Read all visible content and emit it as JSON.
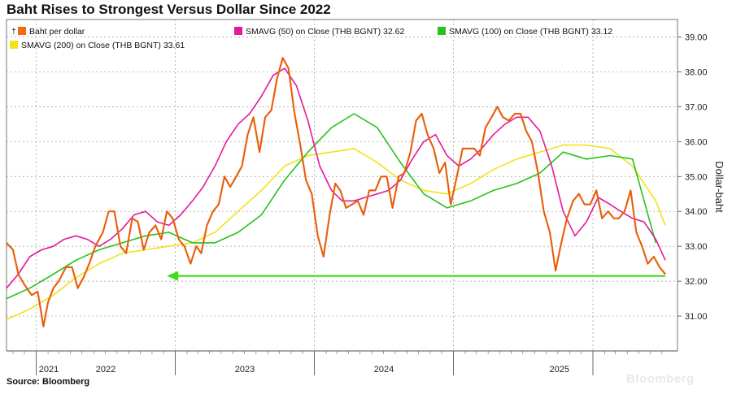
{
  "title": "Baht Rises to Strongest Versus Dollar Since 2022",
  "source": "Source: Bloomberg",
  "watermark": "Bloomberg",
  "chart_data": {
    "type": "line",
    "ylabel": "Dollar-baht",
    "ylim": [
      30.0,
      39.5
    ],
    "yticks": [
      "39.00",
      "38.00",
      "37.00",
      "36.00",
      "35.00",
      "34.00",
      "33.00",
      "32.00",
      "31.00"
    ],
    "x_axis_years": [
      "2021",
      "2022",
      "2023",
      "2024",
      "2025"
    ],
    "x_range": [
      "2020-10-15",
      "2025-05-10"
    ],
    "grid": true,
    "legend_position": "top",
    "series": [
      {
        "name": "Baht per dollar",
        "color": "#f26b14",
        "points": [
          [
            "2020-10-15",
            33.1
          ],
          [
            "2020-11-01",
            32.9
          ],
          [
            "2020-11-15",
            32.2
          ],
          [
            "2020-12-01",
            31.9
          ],
          [
            "2020-12-20",
            31.6
          ],
          [
            "2021-01-05",
            31.7
          ],
          [
            "2021-01-20",
            30.7
          ],
          [
            "2021-02-01",
            31.4
          ],
          [
            "2021-02-15",
            31.8
          ],
          [
            "2021-03-01",
            32.0
          ],
          [
            "2021-03-20",
            32.4
          ],
          [
            "2021-04-05",
            32.4
          ],
          [
            "2021-04-20",
            31.8
          ],
          [
            "2021-05-05",
            32.1
          ],
          [
            "2021-05-20",
            32.5
          ],
          [
            "2021-06-05",
            33.0
          ],
          [
            "2021-06-25",
            33.4
          ],
          [
            "2021-07-10",
            34.0
          ],
          [
            "2021-07-25",
            34.0
          ],
          [
            "2021-08-10",
            33.0
          ],
          [
            "2021-08-25",
            32.8
          ],
          [
            "2021-09-10",
            33.8
          ],
          [
            "2021-09-25",
            33.7
          ],
          [
            "2021-10-10",
            32.9
          ],
          [
            "2021-10-25",
            33.4
          ],
          [
            "2021-11-10",
            33.6
          ],
          [
            "2021-11-25",
            33.2
          ],
          [
            "2021-12-10",
            34.0
          ],
          [
            "2021-12-25",
            33.8
          ],
          [
            "2022-01-10",
            33.2
          ],
          [
            "2022-01-25",
            33.0
          ],
          [
            "2022-02-10",
            32.5
          ],
          [
            "2022-02-25",
            33.0
          ],
          [
            "2022-03-10",
            32.8
          ],
          [
            "2022-03-25",
            33.6
          ],
          [
            "2022-04-10",
            34.0
          ],
          [
            "2022-04-25",
            34.2
          ],
          [
            "2022-05-10",
            35.0
          ],
          [
            "2022-05-25",
            34.7
          ],
          [
            "2022-06-10",
            35.0
          ],
          [
            "2022-06-25",
            35.3
          ],
          [
            "2022-07-10",
            36.2
          ],
          [
            "2022-07-25",
            36.7
          ],
          [
            "2022-08-10",
            35.7
          ],
          [
            "2022-08-25",
            36.7
          ],
          [
            "2022-09-10",
            36.9
          ],
          [
            "2022-09-25",
            37.8
          ],
          [
            "2022-10-10",
            38.4
          ],
          [
            "2022-10-25",
            38.1
          ],
          [
            "2022-11-10",
            36.8
          ],
          [
            "2022-11-25",
            35.9
          ],
          [
            "2022-12-10",
            34.9
          ],
          [
            "2022-12-25",
            34.5
          ],
          [
            "2023-01-10",
            33.3
          ],
          [
            "2023-01-25",
            32.7
          ],
          [
            "2023-02-10",
            33.9
          ],
          [
            "2023-02-25",
            34.8
          ],
          [
            "2023-03-10",
            34.6
          ],
          [
            "2023-03-25",
            34.1
          ],
          [
            "2023-04-10",
            34.2
          ],
          [
            "2023-04-25",
            34.3
          ],
          [
            "2023-05-10",
            33.9
          ],
          [
            "2023-05-25",
            34.6
          ],
          [
            "2023-06-10",
            34.6
          ],
          [
            "2023-06-25",
            35.0
          ],
          [
            "2023-07-10",
            35.0
          ],
          [
            "2023-07-25",
            34.1
          ],
          [
            "2023-08-10",
            35.0
          ],
          [
            "2023-08-25",
            35.1
          ],
          [
            "2023-09-10",
            35.7
          ],
          [
            "2023-09-25",
            36.6
          ],
          [
            "2023-10-10",
            36.8
          ],
          [
            "2023-10-25",
            36.2
          ],
          [
            "2023-11-10",
            35.8
          ],
          [
            "2023-11-25",
            35.1
          ],
          [
            "2023-12-10",
            35.4
          ],
          [
            "2023-12-25",
            34.2
          ],
          [
            "2024-01-10",
            35.0
          ],
          [
            "2024-01-25",
            35.8
          ],
          [
            "2024-02-10",
            35.8
          ],
          [
            "2024-02-25",
            35.8
          ],
          [
            "2024-03-10",
            35.6
          ],
          [
            "2024-03-25",
            36.4
          ],
          [
            "2024-04-10",
            36.7
          ],
          [
            "2024-04-25",
            37.0
          ],
          [
            "2024-05-10",
            36.7
          ],
          [
            "2024-05-25",
            36.6
          ],
          [
            "2024-06-10",
            36.8
          ],
          [
            "2024-06-25",
            36.8
          ],
          [
            "2024-07-10",
            36.3
          ],
          [
            "2024-07-25",
            36.0
          ],
          [
            "2024-08-10",
            35.1
          ],
          [
            "2024-08-25",
            34.0
          ],
          [
            "2024-09-10",
            33.4
          ],
          [
            "2024-09-25",
            32.3
          ],
          [
            "2024-10-10",
            33.1
          ],
          [
            "2024-10-25",
            33.8
          ],
          [
            "2024-11-10",
            34.3
          ],
          [
            "2024-11-25",
            34.5
          ],
          [
            "2024-12-10",
            34.2
          ],
          [
            "2024-12-25",
            34.2
          ],
          [
            "2025-01-10",
            34.6
          ],
          [
            "2025-01-25",
            33.8
          ],
          [
            "2025-02-10",
            34.0
          ],
          [
            "2025-02-25",
            33.8
          ],
          [
            "2025-03-10",
            33.8
          ],
          [
            "2025-03-25",
            34.0
          ],
          [
            "2025-04-10",
            34.6
          ],
          [
            "2025-04-25",
            33.4
          ],
          [
            "2025-05-10",
            33.0
          ],
          [
            "2025-05-25",
            32.5
          ],
          [
            "2025-06-10",
            32.7
          ],
          [
            "2025-06-25",
            32.4
          ],
          [
            "2025-07-10",
            32.2
          ]
        ]
      },
      {
        "name": "SMAVG (50)  on Close (THB BGNT) 32.62",
        "color": "#e4199a",
        "points": [
          [
            "2020-10-15",
            31.8
          ],
          [
            "2020-11-15",
            32.2
          ],
          [
            "2020-12-15",
            32.7
          ],
          [
            "2021-01-15",
            32.9
          ],
          [
            "2021-02-15",
            33.0
          ],
          [
            "2021-03-15",
            33.2
          ],
          [
            "2021-04-15",
            33.3
          ],
          [
            "2021-05-15",
            33.2
          ],
          [
            "2021-06-15",
            33.0
          ],
          [
            "2021-07-15",
            33.2
          ],
          [
            "2021-08-15",
            33.5
          ],
          [
            "2021-09-15",
            33.9
          ],
          [
            "2021-10-15",
            34.0
          ],
          [
            "2021-11-15",
            33.7
          ],
          [
            "2021-12-15",
            33.6
          ],
          [
            "2022-01-15",
            33.9
          ],
          [
            "2022-02-15",
            34.3
          ],
          [
            "2022-03-15",
            34.7
          ],
          [
            "2022-04-15",
            35.3
          ],
          [
            "2022-05-15",
            36.0
          ],
          [
            "2022-06-15",
            36.5
          ],
          [
            "2022-07-15",
            36.8
          ],
          [
            "2022-08-15",
            37.3
          ],
          [
            "2022-09-15",
            37.9
          ],
          [
            "2022-10-15",
            38.1
          ],
          [
            "2022-11-15",
            37.6
          ],
          [
            "2022-12-15",
            36.6
          ],
          [
            "2023-01-15",
            35.3
          ],
          [
            "2023-02-15",
            34.6
          ],
          [
            "2023-03-15",
            34.3
          ],
          [
            "2023-04-15",
            34.3
          ],
          [
            "2023-05-15",
            34.4
          ],
          [
            "2023-06-15",
            34.5
          ],
          [
            "2023-07-15",
            34.6
          ],
          [
            "2023-08-15",
            34.9
          ],
          [
            "2023-09-15",
            35.5
          ],
          [
            "2023-10-15",
            36.0
          ],
          [
            "2023-11-15",
            36.2
          ],
          [
            "2023-12-15",
            35.6
          ],
          [
            "2024-01-15",
            35.3
          ],
          [
            "2024-02-15",
            35.5
          ],
          [
            "2024-03-15",
            35.8
          ],
          [
            "2024-04-15",
            36.2
          ],
          [
            "2024-05-15",
            36.5
          ],
          [
            "2024-06-15",
            36.7
          ],
          [
            "2024-07-15",
            36.7
          ],
          [
            "2024-08-15",
            36.3
          ],
          [
            "2024-09-15",
            35.3
          ],
          [
            "2024-10-15",
            34.0
          ],
          [
            "2024-11-15",
            33.3
          ],
          [
            "2024-12-15",
            33.7
          ],
          [
            "2025-01-15",
            34.4
          ],
          [
            "2025-02-15",
            34.2
          ],
          [
            "2025-03-15",
            34.0
          ],
          [
            "2025-04-15",
            33.8
          ],
          [
            "2025-05-15",
            33.7
          ],
          [
            "2025-06-15",
            33.2
          ],
          [
            "2025-07-10",
            32.6
          ]
        ]
      },
      {
        "name": "SMAVG (100)  on Close (THB BGNT) 33.12",
        "color": "#27c21b",
        "points": [
          [
            "2020-10-15",
            31.5
          ],
          [
            "2020-12-15",
            31.8
          ],
          [
            "2021-02-15",
            32.2
          ],
          [
            "2021-04-15",
            32.6
          ],
          [
            "2021-06-15",
            32.9
          ],
          [
            "2021-08-15",
            33.1
          ],
          [
            "2021-10-15",
            33.3
          ],
          [
            "2021-12-15",
            33.4
          ],
          [
            "2022-02-15",
            33.1
          ],
          [
            "2022-04-15",
            33.1
          ],
          [
            "2022-06-15",
            33.4
          ],
          [
            "2022-08-15",
            33.9
          ],
          [
            "2022-10-15",
            34.9
          ],
          [
            "2022-12-15",
            35.7
          ],
          [
            "2023-02-15",
            36.4
          ],
          [
            "2023-04-15",
            36.8
          ],
          [
            "2023-06-15",
            36.4
          ],
          [
            "2023-08-15",
            35.4
          ],
          [
            "2023-10-15",
            34.5
          ],
          [
            "2023-12-15",
            34.1
          ],
          [
            "2024-02-15",
            34.3
          ],
          [
            "2024-04-15",
            34.6
          ],
          [
            "2024-06-15",
            34.8
          ],
          [
            "2024-08-15",
            35.1
          ],
          [
            "2024-10-15",
            35.7
          ],
          [
            "2024-12-15",
            35.5
          ],
          [
            "2025-02-15",
            35.6
          ],
          [
            "2025-04-15",
            35.5
          ],
          [
            "2025-06-15",
            33.1
          ]
        ]
      },
      {
        "name": "SMAVG (200)  on Close (THB BGNT) 33.61",
        "color": "#f3e11c",
        "points": [
          [
            "2020-10-15",
            30.9
          ],
          [
            "2020-12-15",
            31.2
          ],
          [
            "2021-02-15",
            31.6
          ],
          [
            "2021-04-15",
            32.1
          ],
          [
            "2021-06-15",
            32.5
          ],
          [
            "2021-08-15",
            32.8
          ],
          [
            "2021-10-15",
            32.9
          ],
          [
            "2021-12-15",
            33.0
          ],
          [
            "2022-02-15",
            33.1
          ],
          [
            "2022-04-15",
            33.4
          ],
          [
            "2022-06-15",
            34.0
          ],
          [
            "2022-08-15",
            34.6
          ],
          [
            "2022-10-15",
            35.3
          ],
          [
            "2022-12-15",
            35.6
          ],
          [
            "2023-02-15",
            35.7
          ],
          [
            "2023-04-15",
            35.8
          ],
          [
            "2023-06-15",
            35.4
          ],
          [
            "2023-08-15",
            34.9
          ],
          [
            "2023-10-15",
            34.6
          ],
          [
            "2023-12-15",
            34.5
          ],
          [
            "2024-02-15",
            34.8
          ],
          [
            "2024-04-15",
            35.2
          ],
          [
            "2024-06-15",
            35.5
          ],
          [
            "2024-08-15",
            35.7
          ],
          [
            "2024-10-15",
            35.9
          ],
          [
            "2024-12-15",
            35.9
          ],
          [
            "2025-02-15",
            35.8
          ],
          [
            "2025-04-15",
            35.3
          ],
          [
            "2025-06-15",
            34.3
          ],
          [
            "2025-07-10",
            33.6
          ]
        ]
      }
    ],
    "annotation": {
      "type": "arrow",
      "color": "#3fdc17",
      "from": [
        "2025-07-10",
        32.15
      ],
      "to": [
        "2021-12-10",
        32.15
      ]
    }
  }
}
